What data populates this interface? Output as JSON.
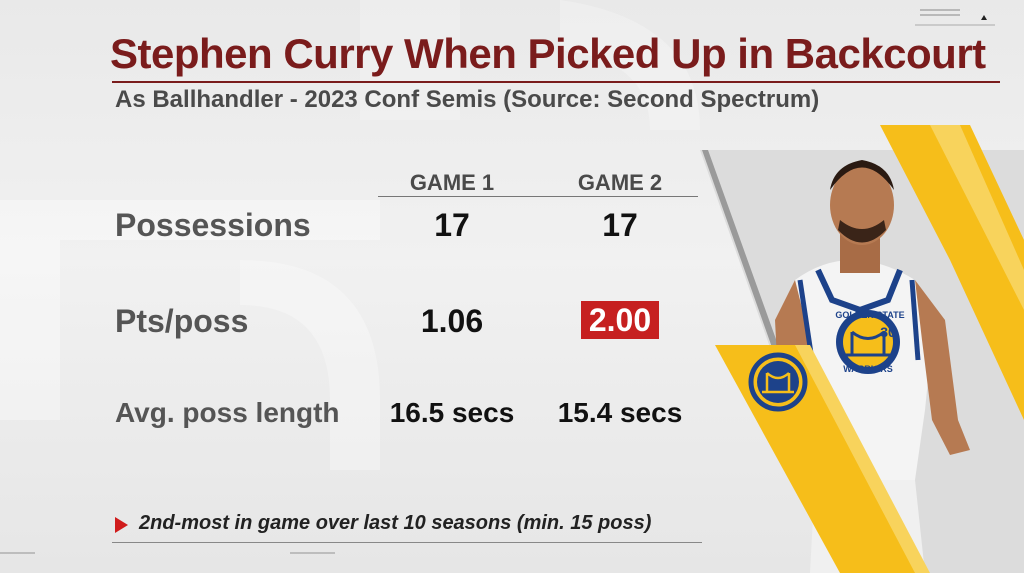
{
  "header": {
    "title": "Stephen Curry When Picked Up in Backcourt",
    "subtitle": "As Ballhandler - 2023 Conf Semis (Source: Second Spectrum)"
  },
  "table": {
    "columns": [
      "GAME 1",
      "GAME 2"
    ],
    "rows": [
      {
        "label": "Possessions",
        "values": [
          "17",
          "17"
        ]
      },
      {
        "label": "Pts/poss",
        "values": [
          "1.06",
          "2.00"
        ]
      },
      {
        "label": "Avg. poss length",
        "values": [
          "16.5 secs",
          "15.4 secs"
        ]
      }
    ]
  },
  "footnote": "2nd-most in game over last 10 seasons (min. 15 poss)",
  "player": {
    "jersey_text": "GOLDEN STATE WARRIORS",
    "jersey_number": "30"
  },
  "colors": {
    "title": "#7a1c1c",
    "highlight": "#c62020",
    "gold": "#f6be1a",
    "warriors_blue": "#1d428a"
  },
  "icons": {
    "footnote_marker": "triangle-right-icon",
    "team_logo": "warriors-bridge-logo"
  }
}
